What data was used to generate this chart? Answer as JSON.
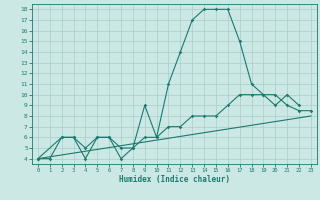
{
  "xlabel": "Humidex (Indice chaleur)",
  "xlim": [
    -0.5,
    23.5
  ],
  "ylim": [
    3.5,
    18.5
  ],
  "xticks": [
    0,
    1,
    2,
    3,
    4,
    5,
    6,
    7,
    8,
    9,
    10,
    11,
    12,
    13,
    14,
    15,
    16,
    17,
    18,
    19,
    20,
    21,
    22,
    23
  ],
  "yticks": [
    4,
    5,
    6,
    7,
    8,
    9,
    10,
    11,
    12,
    13,
    14,
    15,
    16,
    17,
    18
  ],
  "bg_color": "#cce8e5",
  "line_color": "#1a7a6e",
  "grid_color": "#a8ceca",
  "line1_x": [
    0,
    1,
    2,
    3,
    4,
    5,
    6,
    7,
    8,
    9,
    10,
    11,
    12,
    13,
    14,
    15,
    16,
    17,
    18,
    19,
    20,
    21,
    22
  ],
  "line1_y": [
    4,
    4,
    6,
    6,
    4,
    6,
    6,
    5,
    5,
    9,
    6,
    11,
    14,
    17,
    18,
    18,
    18,
    15,
    11,
    10,
    9,
    10,
    9
  ],
  "line2_x": [
    0,
    2,
    3,
    4,
    5,
    6,
    7,
    8,
    9,
    10,
    11,
    12,
    13,
    14,
    15,
    16,
    17,
    18,
    19,
    20,
    21,
    22,
    23
  ],
  "line2_y": [
    4,
    6,
    6,
    5,
    6,
    6,
    4,
    5,
    6,
    6,
    7,
    7,
    8,
    8,
    8,
    9,
    10,
    10,
    10,
    10,
    9,
    8.5,
    8.5
  ],
  "line3_x": [
    0,
    23
  ],
  "line3_y": [
    4,
    8
  ]
}
